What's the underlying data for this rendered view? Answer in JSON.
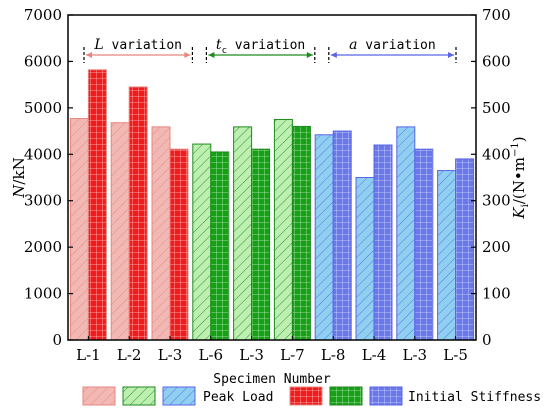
{
  "chart_data": {
    "type": "bar",
    "categories": [
      "L-1",
      "L-2",
      "L-3",
      "L-6",
      "L-3",
      "L-7",
      "L-8",
      "L-4",
      "L-3",
      "L-5"
    ],
    "series": [
      {
        "name": "Peak Load",
        "axis": "left",
        "values": [
          4770,
          4680,
          4590,
          4220,
          4590,
          4750,
          4420,
          3500,
          4590,
          3650
        ]
      },
      {
        "name": "Initial Stiffness",
        "axis": "right",
        "values": [
          582,
          545,
          411,
          405,
          411,
          460,
          450,
          420,
          411,
          390
        ]
      }
    ],
    "groups": [
      {
        "name_prefix": "L",
        "name_sub": "",
        "name_suffix": " variation",
        "categories": [
          0,
          1,
          2
        ],
        "color": "#e8857f",
        "fill": "#f2b9b4",
        "fill2": "#ee1c1c"
      },
      {
        "name_prefix": "t",
        "name_sub": "c",
        "name_suffix": " variation",
        "categories": [
          3,
          4,
          5
        ],
        "color": "#1f8a1f",
        "fill": "#bdf0b0",
        "fill2": "#15a015"
      },
      {
        "name_prefix": "a",
        "name_sub": "",
        "name_suffix": "  variation",
        "categories": [
          6,
          7,
          8,
          9
        ],
        "color": "#5a64e6",
        "fill": "#8fd0f0",
        "fill2": "#6a78ea"
      }
    ],
    "xlabel": "Specimen Number",
    "ylabel_left_prefix": "N",
    "ylabel_left_suffix": "/kN",
    "ylabel_right_prefix": "K",
    "ylabel_right_sub": "i",
    "ylabel_right_suffix": "/(N•m",
    "ylabel_right_sup": "−1",
    "ylabel_right_close": ")",
    "ylim_left": [
      0,
      7000
    ],
    "ylim_right": [
      0,
      700
    ],
    "yticks_left": [
      0,
      1000,
      2000,
      3000,
      4000,
      5000,
      6000,
      7000
    ],
    "yticks_right": [
      0,
      100,
      200,
      300,
      400,
      500,
      600,
      700
    ],
    "legend": {
      "placement": "bottom",
      "labels": [
        "Peak Load",
        "Initial Stiffness"
      ]
    },
    "grid": false
  }
}
